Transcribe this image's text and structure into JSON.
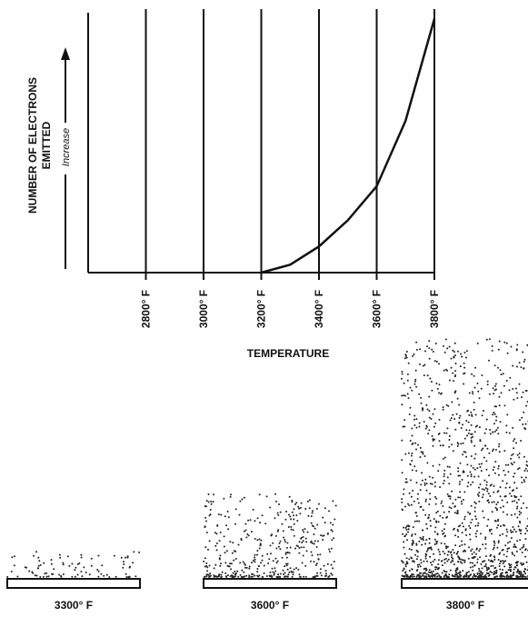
{
  "chart_data": {
    "type": "line",
    "xlabel": "TEMPERATURE",
    "ylabel": [
      "NUMBER OF ELECTRONS",
      "EMITTED"
    ],
    "yarrow_label": "Increase",
    "x": [
      3200,
      3300,
      3400,
      3500,
      3600,
      3700,
      3800
    ],
    "values": [
      0,
      3,
      10,
      20,
      33,
      58,
      97
    ],
    "color": "#111111",
    "xlim": [
      2600,
      3800
    ],
    "ylim": [
      0,
      100
    ],
    "xticks": [
      {
        "value": 2800,
        "label": "2800° F"
      },
      {
        "value": 3000,
        "label": "3000° F"
      },
      {
        "value": 3200,
        "label": "3200° F"
      },
      {
        "value": 3400,
        "label": "3400° F"
      },
      {
        "value": 3600,
        "label": "3600° F"
      },
      {
        "value": 3800,
        "label": "3800° F"
      }
    ],
    "grid": true
  },
  "panels": [
    {
      "label": "3300° F"
    },
    {
      "label": "3600° F"
    },
    {
      "label": "3800° F"
    }
  ]
}
